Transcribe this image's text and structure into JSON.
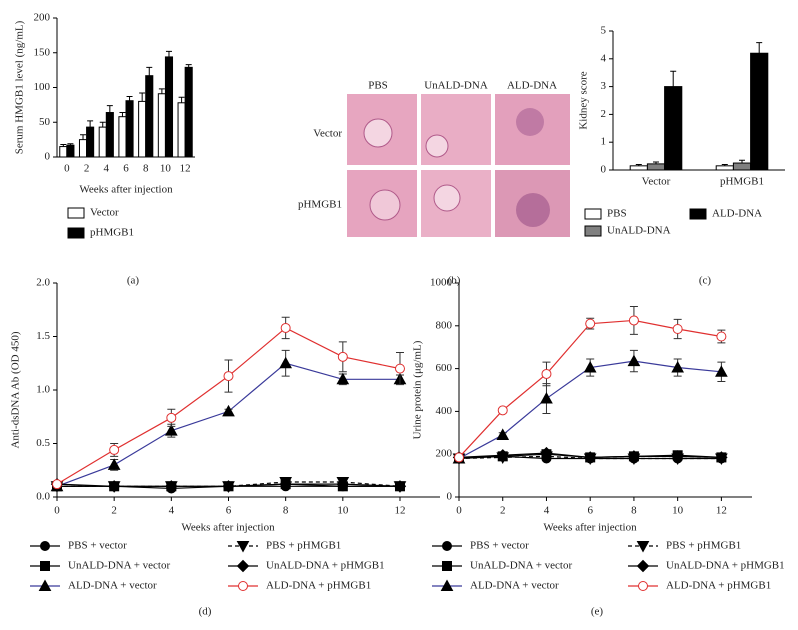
{
  "chart_data": [
    {
      "type": "bar",
      "panel_label": "(a)",
      "y_label": "Serum HMGB1 level (ng/mL)",
      "x_label": "Weeks after injection",
      "categories": [
        "0",
        "2",
        "4",
        "6",
        "8",
        "10",
        "12"
      ],
      "series": [
        {
          "name": "Vector",
          "color": "#ffffff",
          "values": [
            15,
            25,
            43,
            58,
            80,
            91,
            78
          ],
          "errors": [
            3,
            7,
            7,
            6,
            12,
            7,
            8
          ]
        },
        {
          "name": "pHMGB1",
          "color": "#000000",
          "values": [
            17,
            43,
            64,
            81,
            117,
            144,
            129
          ],
          "errors": [
            2,
            9,
            10,
            6,
            12,
            8,
            4
          ]
        }
      ],
      "ylim": [
        0,
        200
      ],
      "yticks": [
        0,
        50,
        100,
        150,
        200
      ]
    },
    {
      "type": "bar",
      "panel_label": "(c)",
      "y_label": "Kidney score",
      "categories": [
        "Vector",
        "pHMGB1"
      ],
      "series": [
        {
          "name": "PBS",
          "color": "#ffffff",
          "values": [
            0.15,
            0.15
          ],
          "errors": [
            0.05,
            0.05
          ]
        },
        {
          "name": "UnALD-DNA",
          "color": "#808080",
          "values": [
            0.22,
            0.25
          ],
          "errors": [
            0.07,
            0.1
          ]
        },
        {
          "name": "ALD-DNA",
          "color": "#000000",
          "values": [
            3.0,
            4.2
          ],
          "errors": [
            0.55,
            0.38
          ]
        }
      ],
      "ylim": [
        0,
        5
      ],
      "yticks": [
        0,
        1,
        2,
        3,
        4,
        5
      ]
    },
    {
      "type": "line",
      "panel_label": "(d)",
      "y_label": "Anti-dsDNA Ab (OD 450)",
      "x_label": "Weeks after injection",
      "x": [
        0,
        2,
        4,
        6,
        8,
        10,
        12
      ],
      "series": [
        {
          "name": "PBS + vector",
          "color": "#000000",
          "marker": "circle",
          "dashed": false,
          "values": [
            0.1,
            0.1,
            0.08,
            0.1,
            0.1,
            0.1,
            0.1
          ]
        },
        {
          "name": "UnALD-DNA + vector",
          "color": "#000000",
          "marker": "square",
          "dashed": false,
          "values": [
            0.1,
            0.1,
            0.1,
            0.1,
            0.12,
            0.1,
            0.1
          ]
        },
        {
          "name": "ALD-DNA + vector",
          "color": "#3a3a9a",
          "marker": "triangle",
          "dashed": false,
          "values": [
            0.1,
            0.3,
            0.62,
            0.8,
            1.25,
            1.1,
            1.1
          ],
          "errors": [
            0.02,
            0.05,
            0.06,
            0.02,
            0.12,
            0.05,
            0.04
          ]
        },
        {
          "name": "PBS + pHMGB1",
          "color": "#000000",
          "marker": "triangle-down",
          "dashed": true,
          "values": [
            0.1,
            0.1,
            0.1,
            0.1,
            0.14,
            0.14,
            0.1
          ]
        },
        {
          "name": "UnALD-DNA + pHMGB1",
          "color": "#000000",
          "marker": "diamond",
          "dashed": false,
          "values": [
            0.12,
            0.1,
            0.1,
            0.1,
            0.12,
            0.12,
            0.1
          ]
        },
        {
          "name": "ALD-DNA + pHMGB1",
          "color": "#e03030",
          "marker": "circle-open",
          "dashed": false,
          "values": [
            0.12,
            0.44,
            0.74,
            1.13,
            1.58,
            1.31,
            1.2
          ],
          "errors": [
            0.02,
            0.06,
            0.08,
            0.15,
            0.1,
            0.14,
            0.15
          ]
        }
      ],
      "xlim": [
        0,
        13.4
      ],
      "xticks": [
        0,
        2,
        4,
        6,
        8,
        10,
        12
      ],
      "ylim": [
        0,
        2
      ],
      "yticks": [
        {
          "value": 0,
          "label": "0.0"
        },
        0.5,
        {
          "value": 1,
          "label": "1.0"
        },
        1.5,
        {
          "value": 2,
          "label": "2.0"
        }
      ]
    },
    {
      "type": "line",
      "panel_label": "(e)",
      "y_label": "Urine protein (μg/mL)",
      "x_label": "Weeks after injection",
      "x": [
        0,
        2,
        4,
        6,
        8,
        10,
        12
      ],
      "series": [
        {
          "name": "PBS + vector",
          "color": "#000000",
          "marker": "circle",
          "dashed": false,
          "values": [
            185,
            190,
            180,
            180,
            180,
            180,
            180
          ]
        },
        {
          "name": "UnALD-DNA + vector",
          "color": "#000000",
          "marker": "square",
          "dashed": false,
          "values": [
            180,
            190,
            200,
            185,
            190,
            195,
            185
          ]
        },
        {
          "name": "ALD-DNA + vector",
          "color": "#3a3a9a",
          "marker": "triangle",
          "dashed": false,
          "values": [
            180,
            290,
            460,
            605,
            635,
            605,
            585
          ],
          "errors": [
            5,
            10,
            70,
            40,
            50,
            40,
            45
          ]
        },
        {
          "name": "PBS + pHMGB1",
          "color": "#000000",
          "marker": "triangle-down",
          "dashed": true,
          "values": [
            180,
            185,
            190,
            180,
            180,
            180,
            180
          ]
        },
        {
          "name": "UnALD-DNA + pHMGB1",
          "color": "#000000",
          "marker": "diamond",
          "dashed": false,
          "values": [
            185,
            195,
            205,
            185,
            190,
            190,
            185
          ]
        },
        {
          "name": "ALD-DNA + pHMGB1",
          "color": "#e03030",
          "marker": "circle-open",
          "dashed": false,
          "values": [
            185,
            405,
            575,
            810,
            825,
            785,
            750
          ],
          "errors": [
            5,
            10,
            55,
            25,
            65,
            45,
            30
          ]
        }
      ],
      "xlim": [
        0,
        13.4
      ],
      "xticks": [
        0,
        2,
        4,
        6,
        8,
        10,
        12
      ],
      "ylim": [
        0,
        1000
      ],
      "yticks": [
        0,
        200,
        400,
        600,
        800,
        1000
      ]
    }
  ],
  "panel_b": {
    "panel_label": "(b)",
    "columns": [
      "PBS",
      "UnALD-DNA",
      "ALD-DNA"
    ],
    "rows": [
      "Vector",
      "pHMGB1"
    ]
  }
}
